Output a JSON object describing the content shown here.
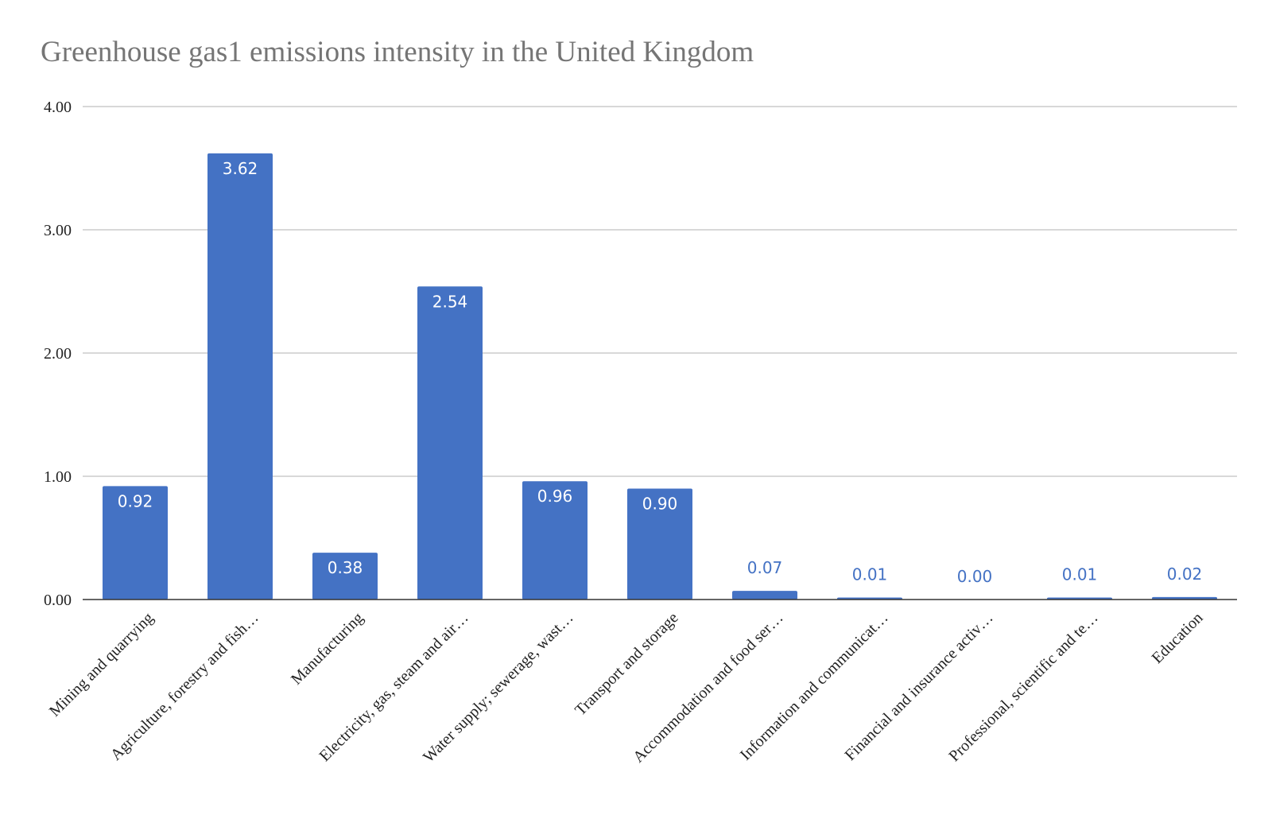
{
  "chart_data": {
    "type": "bar",
    "title": "Greenhouse gas1 emissions intensity in the United Kingdom",
    "xlabel": "",
    "ylabel": "",
    "ylim": [
      0,
      4
    ],
    "yticks": [
      "0.00",
      "1.00",
      "2.00",
      "3.00",
      "4.00"
    ],
    "grid": true,
    "legend": "none",
    "bar_color": "#4472c4",
    "categories": [
      "Mining and quarrying",
      "Agriculture, forestry and fish…",
      "Manufacturing",
      "Electricity, gas, steam and air…",
      "Water supply; sewerage, wast…",
      "Transport and storage",
      "Accommodation and food ser…",
      "Information and communicat…",
      "Financial and insurance activ…",
      "Professional, scientific and te…",
      "Education"
    ],
    "values": [
      0.92,
      3.62,
      0.38,
      2.54,
      0.96,
      0.9,
      0.07,
      0.01,
      0.0,
      0.01,
      0.02
    ],
    "value_labels": [
      "0.92",
      "3.62",
      "0.38",
      "2.54",
      "0.96",
      "0.90",
      "0.07",
      "0.01",
      "0.00",
      "0.01",
      "0.02"
    ]
  }
}
